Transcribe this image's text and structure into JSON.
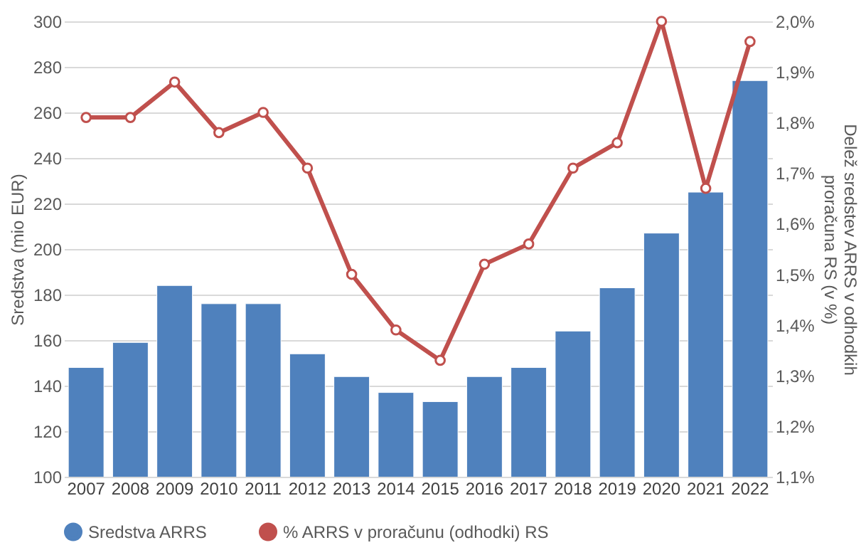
{
  "chart_data": {
    "type": "bar",
    "ylabel": "Sredstva (mio EUR)",
    "y2label": "Delež sredstev ARRS v odhodkih proračuna RS (v %)",
    "categories": [
      "2007",
      "2008",
      "2009",
      "2010",
      "2011",
      "2012",
      "2013",
      "2014",
      "2015",
      "2016",
      "2017",
      "2018",
      "2019",
      "2020",
      "2021",
      "2022"
    ],
    "series": [
      {
        "name": "Sredstva ARRS",
        "color": "#4f81bd",
        "values": [
          148,
          159,
          184,
          176,
          176,
          154,
          144,
          137,
          133,
          144,
          148,
          164,
          183,
          207,
          225,
          274
        ]
      },
      {
        "name": "% ARRS v proračunu (odhodki) RS",
        "type": "line",
        "axis": "y2",
        "color": "#c0504d",
        "marker": "circle",
        "values": [
          1.81,
          1.81,
          1.88,
          1.78,
          1.82,
          1.71,
          1.5,
          1.39,
          1.33,
          1.52,
          1.56,
          1.71,
          1.76,
          2.0,
          1.67,
          1.96
        ]
      }
    ],
    "ylim": [
      100,
      300
    ],
    "yticks": [
      100,
      120,
      140,
      160,
      180,
      200,
      220,
      240,
      260,
      280,
      300
    ],
    "y2lim": [
      1.1,
      2.0
    ],
    "y2ticks": [
      {
        "value": 1.1,
        "label": "1,1%"
      },
      {
        "value": 1.2,
        "label": "1,2%"
      },
      {
        "value": 1.3,
        "label": "1,3%"
      },
      {
        "value": 1.4,
        "label": "1,4%"
      },
      {
        "value": 1.5,
        "label": "1,5%"
      },
      {
        "value": 1.6,
        "label": "1,6%"
      },
      {
        "value": 1.7,
        "label": "1,7%"
      },
      {
        "value": 1.8,
        "label": "1,8%"
      },
      {
        "value": 1.9,
        "label": "1,9%"
      },
      {
        "value": 2.0,
        "label": "2,0%"
      }
    ],
    "grid": "y",
    "legend": "bottom"
  }
}
